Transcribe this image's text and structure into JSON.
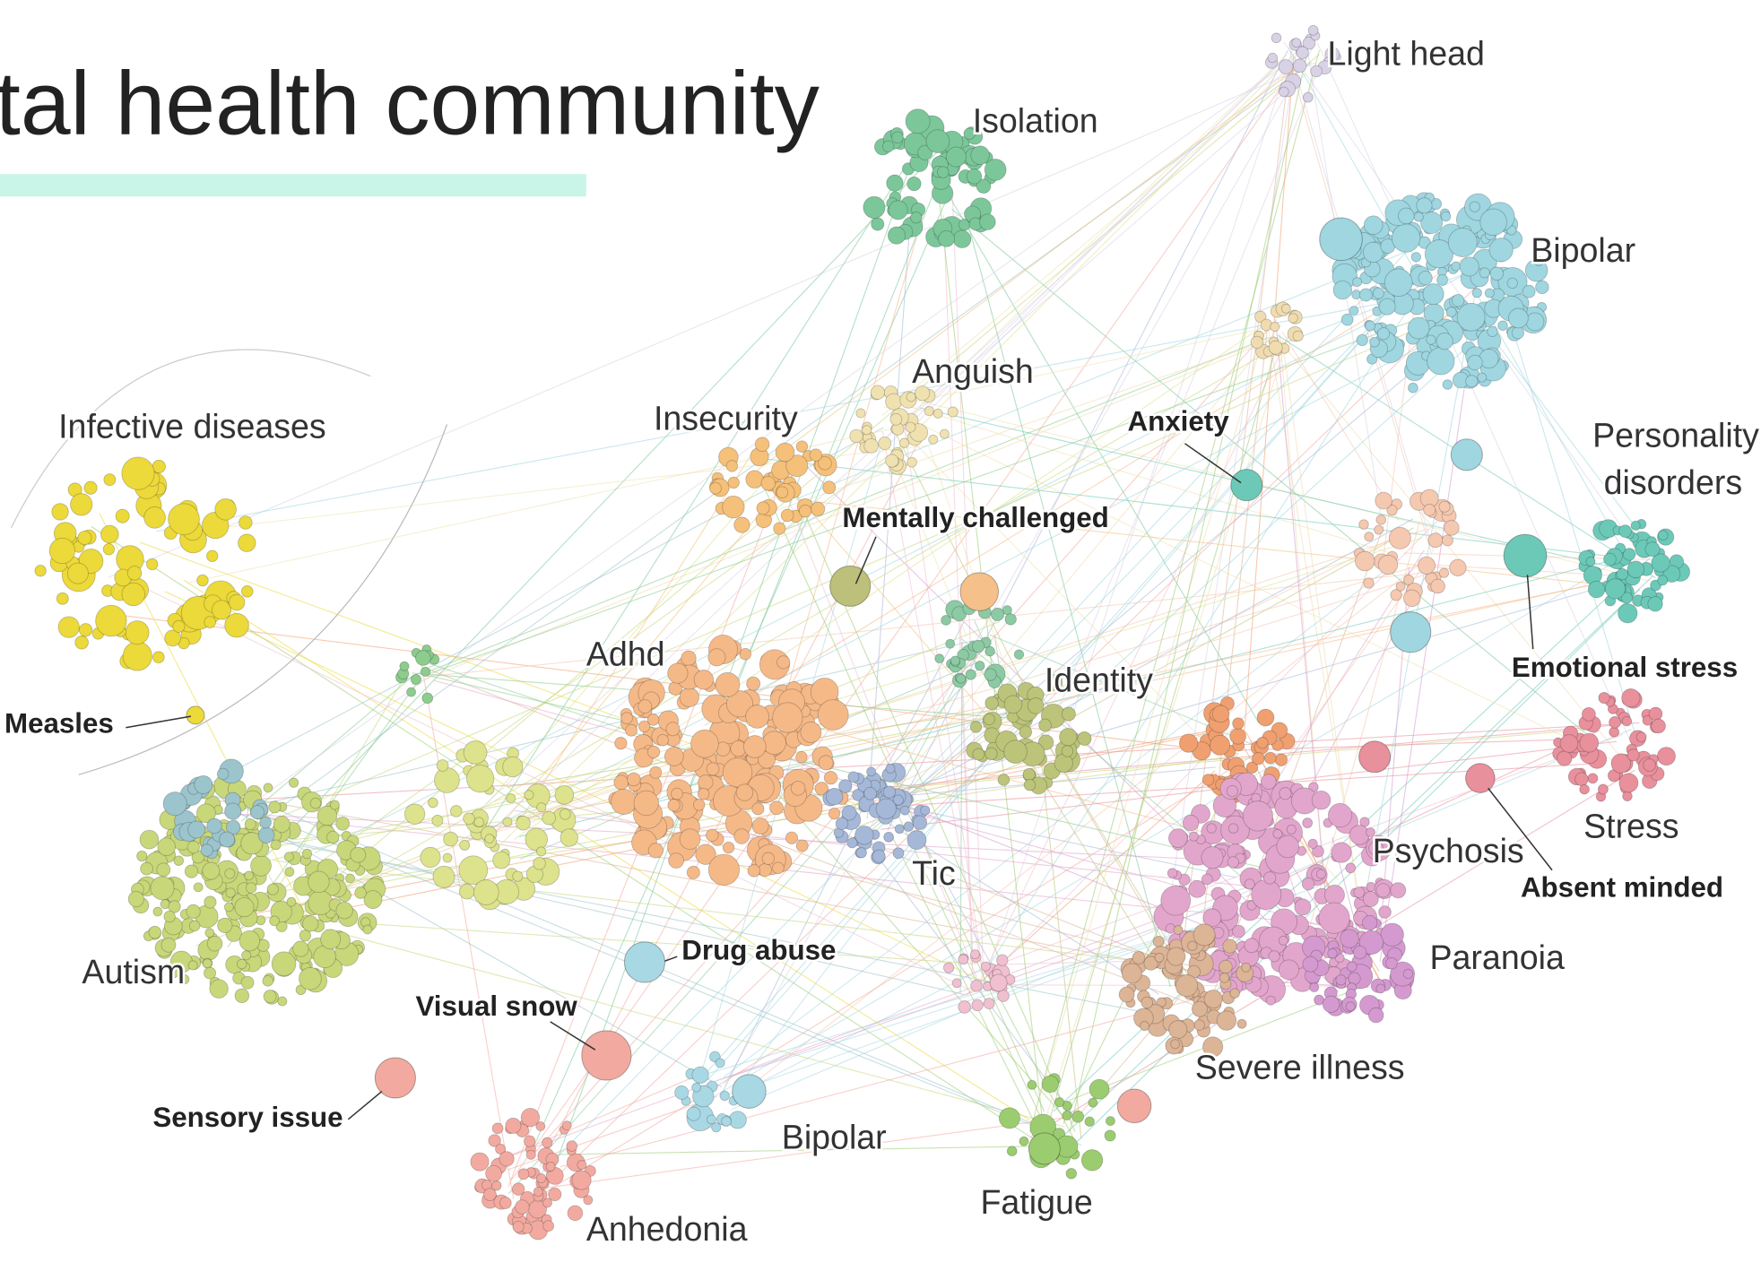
{
  "title": "tal health community",
  "labels": [
    "Light head",
    "Isolation",
    "Bipolar",
    "Anguish",
    "Insecurity",
    "Anxiety",
    "Personality",
    "disorders",
    "Infective diseases",
    "Mentally challenged",
    "Adhd",
    "Identity",
    "Emotional stress",
    "Measles",
    "Stress",
    "Psychosis",
    "Tic",
    "Absent minded",
    "Autism",
    "Drug abuse",
    "Paranoia",
    "Visual snow",
    "Severe illness",
    "Sensory issue",
    "Bipolar",
    "Fatigue",
    "Anhedonia"
  ]
}
